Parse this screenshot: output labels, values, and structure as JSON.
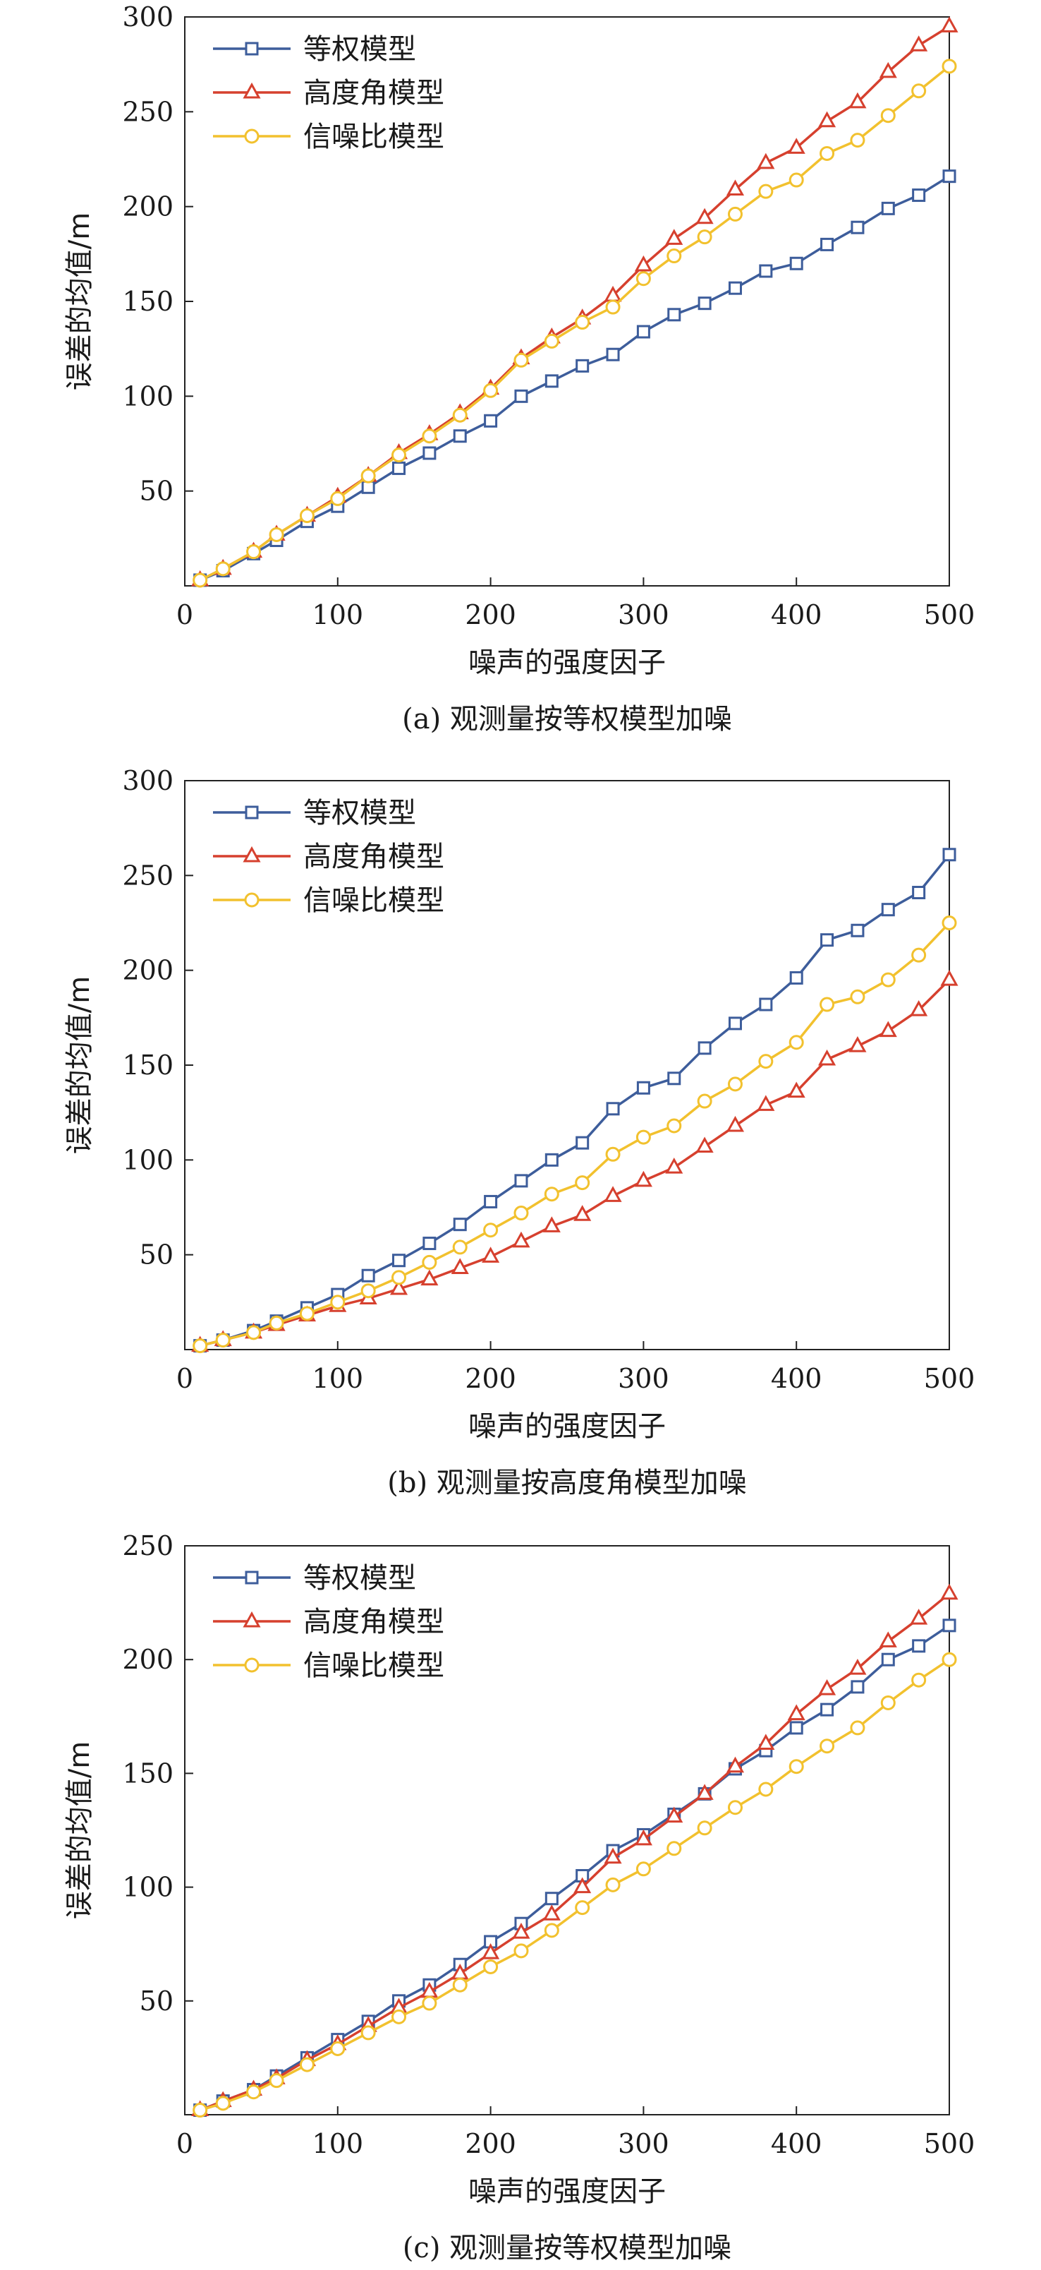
{
  "chart_data": [
    {
      "type": "line",
      "caption": "(a) 观测量按等权模型加噪",
      "xlabel": "噪声的强度因子",
      "ylabel": "误差的均值/m",
      "xlim": [
        0,
        500
      ],
      "ylim": [
        0,
        300
      ],
      "xticks": [
        0,
        100,
        200,
        300,
        400,
        500
      ],
      "yticks": [
        50,
        100,
        150,
        200,
        250,
        300
      ],
      "legend_position": "top-left",
      "x": [
        10,
        25,
        45,
        60,
        80,
        100,
        120,
        140,
        160,
        180,
        200,
        220,
        240,
        260,
        280,
        300,
        320,
        340,
        360,
        380,
        400,
        420,
        440,
        460,
        480,
        500
      ],
      "series": [
        {
          "name": "等权模型",
          "marker": "square",
          "color": "#3d5d9b",
          "values": [
            3,
            8,
            17,
            24,
            34,
            42,
            52,
            62,
            70,
            79,
            87,
            100,
            108,
            116,
            122,
            134,
            143,
            149,
            157,
            166,
            170,
            180,
            189,
            199,
            206,
            216
          ]
        },
        {
          "name": "高度角模型",
          "marker": "triangle",
          "color": "#d6402e",
          "values": [
            3,
            9,
            18,
            27,
            37,
            47,
            58,
            70,
            80,
            91,
            104,
            120,
            131,
            141,
            153,
            169,
            183,
            194,
            209,
            223,
            231,
            245,
            255,
            271,
            285,
            295
          ]
        },
        {
          "name": "信噪比模型",
          "marker": "circle",
          "color": "#f2c12e",
          "values": [
            3,
            9,
            18,
            27,
            37,
            46,
            58,
            69,
            79,
            90,
            103,
            119,
            129,
            139,
            147,
            162,
            174,
            184,
            196,
            208,
            214,
            228,
            235,
            248,
            261,
            274
          ]
        }
      ]
    },
    {
      "type": "line",
      "caption": "(b) 观测量按高度角模型加噪",
      "xlabel": "噪声的强度因子",
      "ylabel": "误差的均值/m",
      "xlim": [
        0,
        500
      ],
      "ylim": [
        0,
        300
      ],
      "xticks": [
        0,
        100,
        200,
        300,
        400,
        500
      ],
      "yticks": [
        50,
        100,
        150,
        200,
        250,
        300
      ],
      "legend_position": "top-left",
      "x": [
        10,
        25,
        45,
        60,
        80,
        100,
        120,
        140,
        160,
        180,
        200,
        220,
        240,
        260,
        280,
        300,
        320,
        340,
        360,
        380,
        400,
        420,
        440,
        460,
        480,
        500
      ],
      "series": [
        {
          "name": "等权模型",
          "marker": "square",
          "color": "#3d5d9b",
          "values": [
            2,
            5,
            10,
            15,
            22,
            29,
            39,
            47,
            56,
            66,
            78,
            89,
            100,
            109,
            127,
            138,
            143,
            159,
            172,
            182,
            196,
            216,
            221,
            232,
            241,
            261
          ]
        },
        {
          "name": "高度角模型",
          "marker": "triangle",
          "color": "#d6402e",
          "values": [
            2,
            5,
            9,
            13,
            18,
            23,
            27,
            32,
            37,
            43,
            49,
            57,
            65,
            71,
            81,
            89,
            96,
            107,
            118,
            129,
            136,
            153,
            160,
            168,
            179,
            195
          ]
        },
        {
          "name": "信噪比模型",
          "marker": "circle",
          "color": "#f2c12e",
          "values": [
            2,
            5,
            9,
            14,
            19,
            25,
            31,
            38,
            46,
            54,
            63,
            72,
            82,
            88,
            103,
            112,
            118,
            131,
            140,
            152,
            162,
            182,
            186,
            195,
            208,
            225
          ]
        }
      ]
    },
    {
      "type": "line",
      "caption": "(c) 观测量按等权模型加噪",
      "xlabel": "噪声的强度因子",
      "ylabel": "误差的均值/m",
      "xlim": [
        0,
        500
      ],
      "ylim": [
        0,
        250
      ],
      "xticks": [
        0,
        100,
        200,
        300,
        400,
        500
      ],
      "yticks": [
        50,
        100,
        150,
        200,
        250
      ],
      "legend_position": "top-left",
      "x": [
        10,
        25,
        45,
        60,
        80,
        100,
        120,
        140,
        160,
        180,
        200,
        220,
        240,
        260,
        280,
        300,
        320,
        340,
        360,
        380,
        400,
        420,
        440,
        460,
        480,
        500
      ],
      "series": [
        {
          "name": "等权模型",
          "marker": "square",
          "color": "#3d5d9b",
          "values": [
            2,
            6,
            11,
            17,
            25,
            33,
            41,
            50,
            57,
            66,
            76,
            84,
            95,
            105,
            116,
            123,
            132,
            141,
            152,
            160,
            170,
            178,
            188,
            200,
            206,
            215
          ]
        },
        {
          "name": "高度角模型",
          "marker": "triangle",
          "color": "#d6402e",
          "values": [
            2,
            6,
            11,
            16,
            24,
            31,
            39,
            47,
            54,
            62,
            71,
            80,
            88,
            100,
            113,
            121,
            131,
            141,
            153,
            163,
            176,
            187,
            196,
            208,
            218,
            229
          ]
        },
        {
          "name": "信噪比模型",
          "marker": "circle",
          "color": "#f2c12e",
          "values": [
            2,
            5,
            10,
            15,
            22,
            29,
            36,
            43,
            49,
            57,
            65,
            72,
            81,
            91,
            101,
            108,
            117,
            126,
            135,
            143,
            153,
            162,
            170,
            181,
            191,
            200
          ]
        }
      ]
    }
  ]
}
